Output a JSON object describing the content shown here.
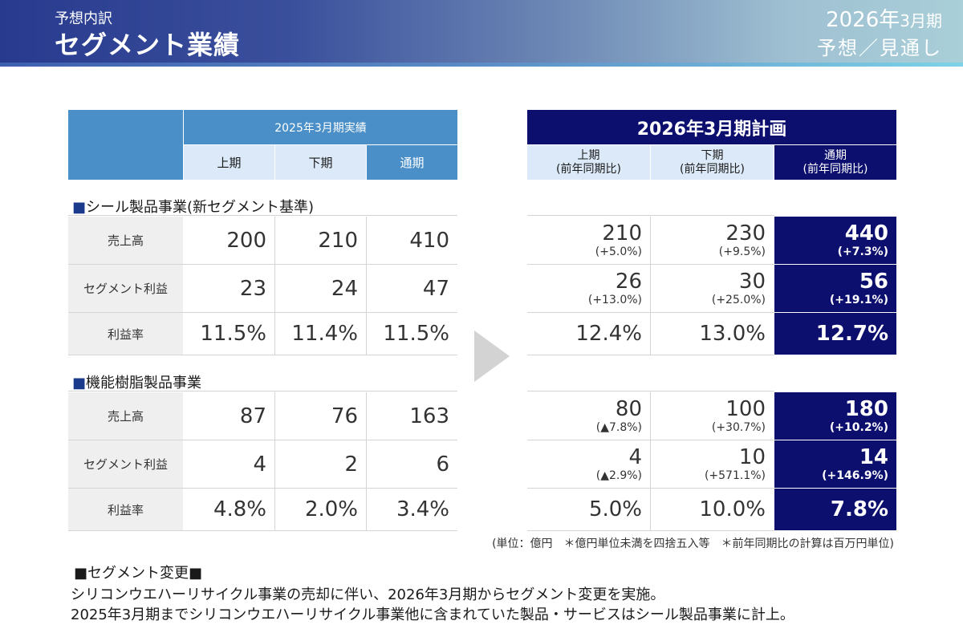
{
  "header": {
    "subtitle": "予想内訳",
    "title": "セグメント業績",
    "period_year": "2026年",
    "period_month": "3月期",
    "period_label": "予想／見通し"
  },
  "left_table": {
    "group_header": "2025年3月期実績",
    "columns": [
      "上期",
      "下期",
      "通期"
    ]
  },
  "right_table": {
    "group_header": "2026年3月期計画",
    "columns": [
      {
        "name": "上期",
        "sub": "(前年同期比)"
      },
      {
        "name": "下期",
        "sub": "(前年同期比)"
      },
      {
        "name": "通期",
        "sub": "(前年同期比)"
      }
    ]
  },
  "sections": [
    {
      "title": "シール製品事業(新セグメント基準)",
      "bullet": "■",
      "rows": [
        {
          "label": "売上高",
          "actual": [
            "200",
            "210",
            "410"
          ],
          "plan": [
            {
              "v": "210",
              "p": "(+5.0%)"
            },
            {
              "v": "230",
              "p": "(+9.5%)"
            },
            {
              "v": "440",
              "p": "(+7.3%)"
            }
          ]
        },
        {
          "label": "セグメント利益",
          "actual": [
            "23",
            "24",
            "47"
          ],
          "plan": [
            {
              "v": "26",
              "p": "(+13.0%)"
            },
            {
              "v": "30",
              "p": "(+25.0%)"
            },
            {
              "v": "56",
              "p": "(+19.1%)"
            }
          ]
        },
        {
          "label": "利益率",
          "actual": [
            "11.5%",
            "11.4%",
            "11.5%"
          ],
          "plan": [
            {
              "v": "12.4%"
            },
            {
              "v": "13.0%"
            },
            {
              "v": "12.7%"
            }
          ]
        }
      ]
    },
    {
      "title": "機能樹脂製品事業",
      "bullet": "■",
      "rows": [
        {
          "label": "売上高",
          "actual": [
            "87",
            "76",
            "163"
          ],
          "plan": [
            {
              "v": "80",
              "p": "(▲7.8%)"
            },
            {
              "v": "100",
              "p": "(+30.7%)"
            },
            {
              "v": "180",
              "p": "(+10.2%)"
            }
          ]
        },
        {
          "label": "セグメント利益",
          "actual": [
            "4",
            "2",
            "6"
          ],
          "plan": [
            {
              "v": "4",
              "p": "(▲2.9%)"
            },
            {
              "v": "10",
              "p": "(+571.1%)"
            },
            {
              "v": "14",
              "p": "(+146.9%)"
            }
          ]
        },
        {
          "label": "利益率",
          "actual": [
            "4.8%",
            "2.0%",
            "3.4%"
          ],
          "plan": [
            {
              "v": "5.0%"
            },
            {
              "v": "10.0%"
            },
            {
              "v": "7.8%"
            }
          ]
        }
      ]
    }
  ],
  "note": "(単位：億円　＊億円単位未満を四捨五入等　＊前年同期比の計算は百万円単位)",
  "footer": {
    "heading": "■セグメント変更■",
    "lines": [
      "シリコンウエハーリサイクル事業の売却に伴い、2026年3月期からセグメント変更を実施。",
      "2025年3月期までシリコンウエハーリサイクル事業他に含まれていた製品・サービスはシール製品事業に計上。"
    ]
  },
  "colors": {
    "navy": "#0c0f6e",
    "blue_header": "#4a8fc7",
    "light_blue": "#dbe9f8",
    "label_bg": "#efefef"
  }
}
